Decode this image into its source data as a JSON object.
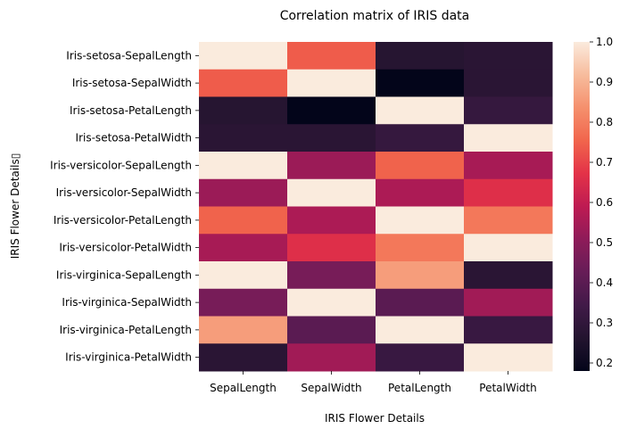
{
  "chart_data": {
    "type": "heatmap",
    "title": "Correlation matrix of IRIS data",
    "xlabel": "IRIS Flower Details",
    "ylabel": "IRIS Flower Details▯",
    "columns": [
      "SepalLength",
      "SepalWidth",
      "PetalLength",
      "PetalWidth"
    ],
    "rows": [
      "Iris-setosa-SepalLength",
      "Iris-setosa-SepalWidth",
      "Iris-setosa-PetalLength",
      "Iris-setosa-PetalWidth",
      "Iris-versicolor-SepalLength",
      "Iris-versicolor-SepalWidth",
      "Iris-versicolor-PetalLength",
      "Iris-versicolor-PetalWidth",
      "Iris-virginica-SepalLength",
      "Iris-virginica-SepalWidth",
      "Iris-virginica-PetalLength",
      "Iris-virginica-PetalWidth"
    ],
    "values": [
      [
        1.0,
        0.74,
        0.27,
        0.28
      ],
      [
        0.74,
        1.0,
        0.18,
        0.28
      ],
      [
        0.27,
        0.18,
        1.0,
        0.31
      ],
      [
        0.28,
        0.28,
        0.31,
        1.0
      ],
      [
        1.0,
        0.53,
        0.75,
        0.55
      ],
      [
        0.53,
        1.0,
        0.56,
        0.66
      ],
      [
        0.75,
        0.56,
        1.0,
        0.79
      ],
      [
        0.55,
        0.66,
        0.79,
        1.0
      ],
      [
        1.0,
        0.46,
        0.86,
        0.28
      ],
      [
        0.46,
        1.0,
        0.4,
        0.54
      ],
      [
        0.86,
        0.4,
        1.0,
        0.32
      ],
      [
        0.28,
        0.54,
        0.32,
        1.0
      ]
    ],
    "colorbar": {
      "min": 0.18,
      "max": 1.0,
      "ticks": [
        "0.2",
        "0.3",
        "0.4",
        "0.5",
        "0.6",
        "0.7",
        "0.8",
        "0.9",
        "1.0"
      ],
      "colormap": "rocket"
    }
  }
}
